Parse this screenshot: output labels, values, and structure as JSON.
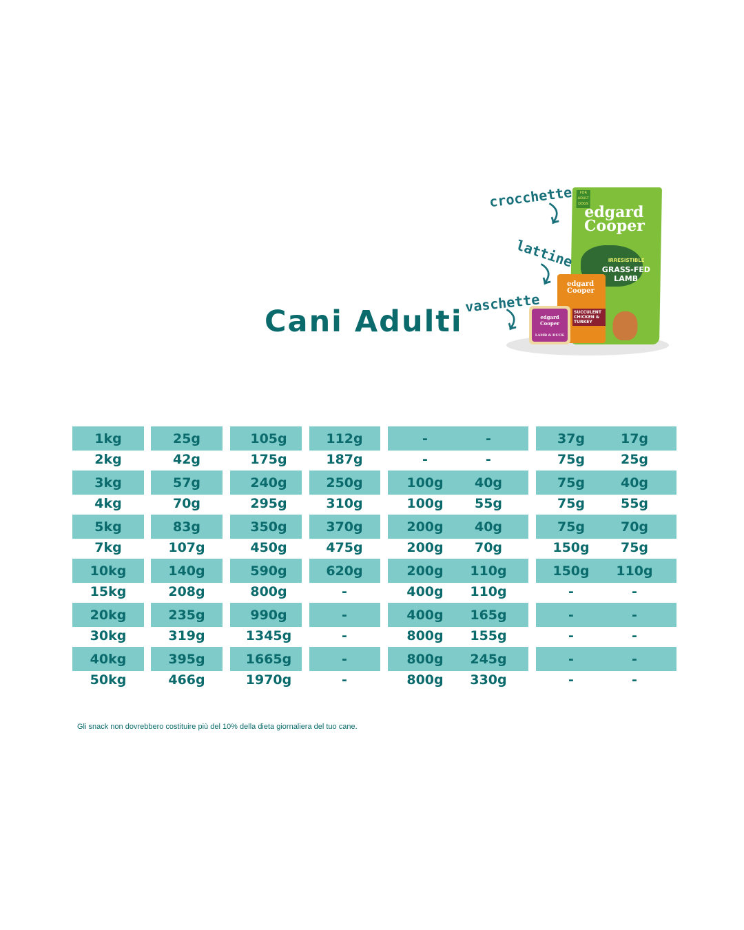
{
  "title": "Cani Adulti",
  "labels": {
    "kibble": "crocchette",
    "cans": "lattine",
    "trays": "vaschette"
  },
  "products": {
    "bag": {
      "badge": "FOR ADULT DOGS",
      "brand": "edgard Cooper",
      "line1": "IRRESISTIBLE",
      "line2": "GRASS-FED LAMB"
    },
    "can": {
      "brand": "edgard Cooper",
      "name": "SUCCULENT CHICKEN & TURKEY"
    },
    "tray": {
      "brand": "edgard Cooper",
      "name": "LAMB & DUCK"
    }
  },
  "colors": {
    "band": "#7ecbca",
    "text": "#0b6b6c"
  },
  "table": {
    "rows": [
      [
        "1kg",
        "25g",
        "105g",
        "112g",
        "-",
        "-",
        "37g",
        "17g"
      ],
      [
        "2kg",
        "42g",
        "175g",
        "187g",
        "-",
        "-",
        "75g",
        "25g"
      ],
      [
        "3kg",
        "57g",
        "240g",
        "250g",
        "100g",
        "40g",
        "75g",
        "40g"
      ],
      [
        "4kg",
        "70g",
        "295g",
        "310g",
        "100g",
        "55g",
        "75g",
        "55g"
      ],
      [
        "5kg",
        "83g",
        "350g",
        "370g",
        "200g",
        "40g",
        "75g",
        "70g"
      ],
      [
        "7kg",
        "107g",
        "450g",
        "475g",
        "200g",
        "70g",
        "150g",
        "75g"
      ],
      [
        "10kg",
        "140g",
        "590g",
        "620g",
        "200g",
        "110g",
        "150g",
        "110g"
      ],
      [
        "15kg",
        "208g",
        "800g",
        "-",
        "400g",
        "110g",
        "-",
        "-"
      ],
      [
        "20kg",
        "235g",
        "990g",
        "-",
        "400g",
        "165g",
        "-",
        "-"
      ],
      [
        "30kg",
        "319g",
        "1345g",
        "-",
        "800g",
        "155g",
        "-",
        "-"
      ],
      [
        "40kg",
        "395g",
        "1665g",
        "-",
        "800g",
        "245g",
        "-",
        "-"
      ],
      [
        "50kg",
        "466g",
        "1970g",
        "-",
        "800g",
        "330g",
        "-",
        "-"
      ]
    ]
  },
  "footnote": "Gli snack non dovrebbero costituire più del 10% della dieta giornaliera del tuo cane."
}
